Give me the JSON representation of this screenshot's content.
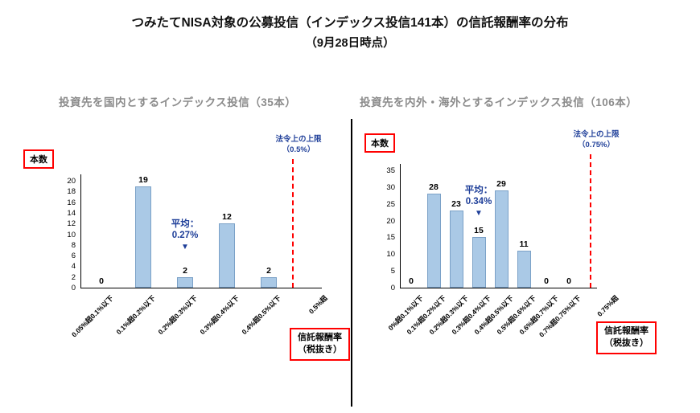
{
  "page": {
    "title_line1": "つみたてNISA対象の公募投信（インデックス投信141本）の信託報酬率の分布",
    "title_line2": "（9月28日時点）"
  },
  "colors": {
    "bar_fill": "#aac9e6",
    "bar_border": "#7ba1c7",
    "box_red": "#ff0000",
    "limit_red": "#ff0000",
    "annotation_blue": "#1f3f99",
    "subtitle_gray": "#8b8b8b",
    "axis_black": "#000000"
  },
  "chart_data": [
    {
      "type": "bar",
      "title": "投資先を国内とするインデックス投信（35本）",
      "ylabel": "本数",
      "xlabel_line1": "信託報酬率",
      "xlabel_line2": "（税抜き）",
      "categories": [
        "0.05%超0.1%以下",
        "0.1%超0.2%以下",
        "0.2%超0.3%以下",
        "0.3%超0.4%以下",
        "0.4%超0.5%以下"
      ],
      "values": [
        0,
        19,
        2,
        12,
        2
      ],
      "over_limit_category": "0.5%超",
      "ylim": [
        0,
        20
      ],
      "ytick_step": 2,
      "grid": false,
      "legend": "none",
      "mean_annotation": {
        "label": "平均：",
        "value": "0.27%",
        "arrow": "▼",
        "bar_index": 2
      },
      "limit_line": {
        "label": "法令上の上限",
        "value_label": "（0.5%）"
      }
    },
    {
      "type": "bar",
      "title": "投資先を内外・海外とするインデックス投信（106本）",
      "ylabel": "本数",
      "xlabel_line1": "信託報酬率",
      "xlabel_line2": "（税抜き）",
      "categories": [
        "0%超0.1%以下",
        "0.1%超0.2%以下",
        "0.2%超0.3%以下",
        "0.3%超0.4%以下",
        "0.4%超0.5%以下",
        "0.5%超0.6%以下",
        "0.6%超0.7%以下",
        "0.7%超0.75%以下"
      ],
      "values": [
        0,
        28,
        23,
        15,
        29,
        11,
        0,
        0
      ],
      "over_limit_category": "0.75%超",
      "ylim": [
        0,
        35
      ],
      "ytick_step": 5,
      "grid": false,
      "legend": "none",
      "mean_annotation": {
        "label": "平均：",
        "value": "0.34%",
        "arrow": "▼",
        "bar_index": 3
      },
      "limit_line": {
        "label": "法令上の上限",
        "value_label": "（0.75%）"
      }
    }
  ]
}
